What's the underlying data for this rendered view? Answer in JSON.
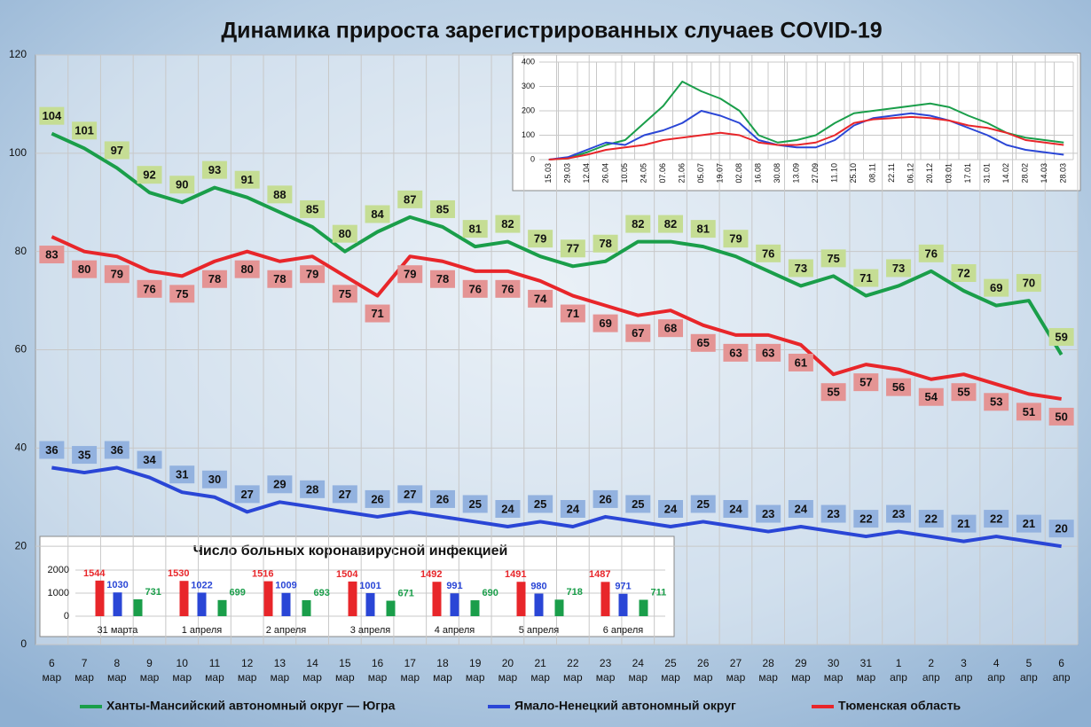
{
  "chart_data": [
    {
      "type": "line",
      "title": "Динамика прироста зарегистрированных случаев COVID-19",
      "categories": [
        "6 мар",
        "7 мар",
        "8 мар",
        "9 мар",
        "10 мар",
        "11 мар",
        "12 мар",
        "13 мар",
        "14 мар",
        "15 мар",
        "16 мар",
        "17 мар",
        "18 мар",
        "19 мар",
        "20 мар",
        "21 мар",
        "22 мар",
        "23 мар",
        "24 мар",
        "25 мар",
        "26 мар",
        "27 мар",
        "28 мар",
        "29 мар",
        "30 мар",
        "31 мар",
        "1 апр",
        "2 апр",
        "3 апр",
        "4 апр",
        "5 апр",
        "6 апр"
      ],
      "series": [
        {
          "name": "Ханты-Мансийский автономный округ — Югра",
          "color": "#1a9e4a",
          "values": [
            104,
            101,
            97,
            92,
            90,
            93,
            91,
            88,
            85,
            80,
            84,
            87,
            85,
            81,
            82,
            79,
            77,
            78,
            82,
            82,
            81,
            79,
            76,
            73,
            75,
            71,
            73,
            76,
            72,
            69,
            70,
            59
          ]
        },
        {
          "name": "Ямало-Ненецкий автономный округ",
          "color": "#2a46d6",
          "values": [
            36,
            35,
            36,
            34,
            31,
            30,
            27,
            29,
            28,
            27,
            26,
            27,
            26,
            25,
            24,
            25,
            24,
            26,
            25,
            24,
            25,
            24,
            23,
            24,
            23,
            22,
            23,
            22,
            21,
            22,
            21,
            20
          ]
        },
        {
          "name": "Тюменская область",
          "color": "#e8262a",
          "values": [
            83,
            80,
            79,
            76,
            75,
            78,
            80,
            78,
            79,
            75,
            71,
            79,
            78,
            76,
            76,
            74,
            71,
            69,
            67,
            68,
            65,
            63,
            63,
            61,
            55,
            57,
            56,
            54,
            55,
            53,
            51,
            50
          ]
        }
      ],
      "ylim": [
        0,
        120
      ],
      "yticks": [
        0,
        20,
        40,
        60,
        80,
        100,
        120
      ],
      "grid": true,
      "legend": "bottom"
    },
    {
      "type": "line",
      "categories": [
        "15.03",
        "29.03",
        "12.04",
        "26.04",
        "10.05",
        "24.05",
        "07.06",
        "21.06",
        "05.07",
        "19.07",
        "02.08",
        "16.08",
        "30.08",
        "13.09",
        "27.09",
        "11.10",
        "25.10",
        "08.11",
        "22.11",
        "06.12",
        "20.12",
        "03.01",
        "17.01",
        "31.01",
        "14.02",
        "28.02",
        "14.03",
        "28.03"
      ],
      "series": [
        {
          "color": "#1a9e4a",
          "values": [
            0,
            5,
            30,
            60,
            80,
            150,
            220,
            320,
            280,
            250,
            200,
            100,
            70,
            80,
            100,
            150,
            190,
            200,
            210,
            220,
            230,
            215,
            180,
            150,
            110,
            90,
            80,
            70
          ]
        },
        {
          "color": "#2a46d6",
          "values": [
            0,
            10,
            40,
            70,
            60,
            100,
            120,
            150,
            200,
            180,
            150,
            80,
            60,
            50,
            50,
            80,
            140,
            170,
            180,
            190,
            180,
            160,
            130,
            100,
            60,
            40,
            30,
            20
          ]
        },
        {
          "color": "#e8262a",
          "values": [
            0,
            5,
            20,
            40,
            50,
            60,
            80,
            90,
            100,
            110,
            100,
            70,
            60,
            60,
            70,
            100,
            150,
            165,
            170,
            175,
            170,
            160,
            140,
            130,
            110,
            80,
            70,
            60
          ]
        }
      ],
      "ylim": [
        0,
        400
      ],
      "yticks": [
        0,
        100,
        200,
        300,
        400
      ],
      "grid": true
    },
    {
      "type": "bar",
      "title": "Число больных коронавирусной инфекцией",
      "categories": [
        "31 марта",
        "1 апреля",
        "2 апреля",
        "3 апреля",
        "4 апреля",
        "5 апреля",
        "6 апреля"
      ],
      "series": [
        {
          "color": "#e8262a",
          "values": [
            1544,
            1530,
            1516,
            1504,
            1492,
            1491,
            1487
          ]
        },
        {
          "color": "#2a46d6",
          "values": [
            1030,
            1022,
            1009,
            1001,
            991,
            980,
            971
          ]
        },
        {
          "color": "#1a9e4a",
          "values": [
            731,
            699,
            693,
            671,
            690,
            718,
            711
          ]
        }
      ],
      "ylim": [
        0,
        2000
      ],
      "yticks": [
        0,
        1000,
        2000
      ],
      "grid": true
    }
  ]
}
